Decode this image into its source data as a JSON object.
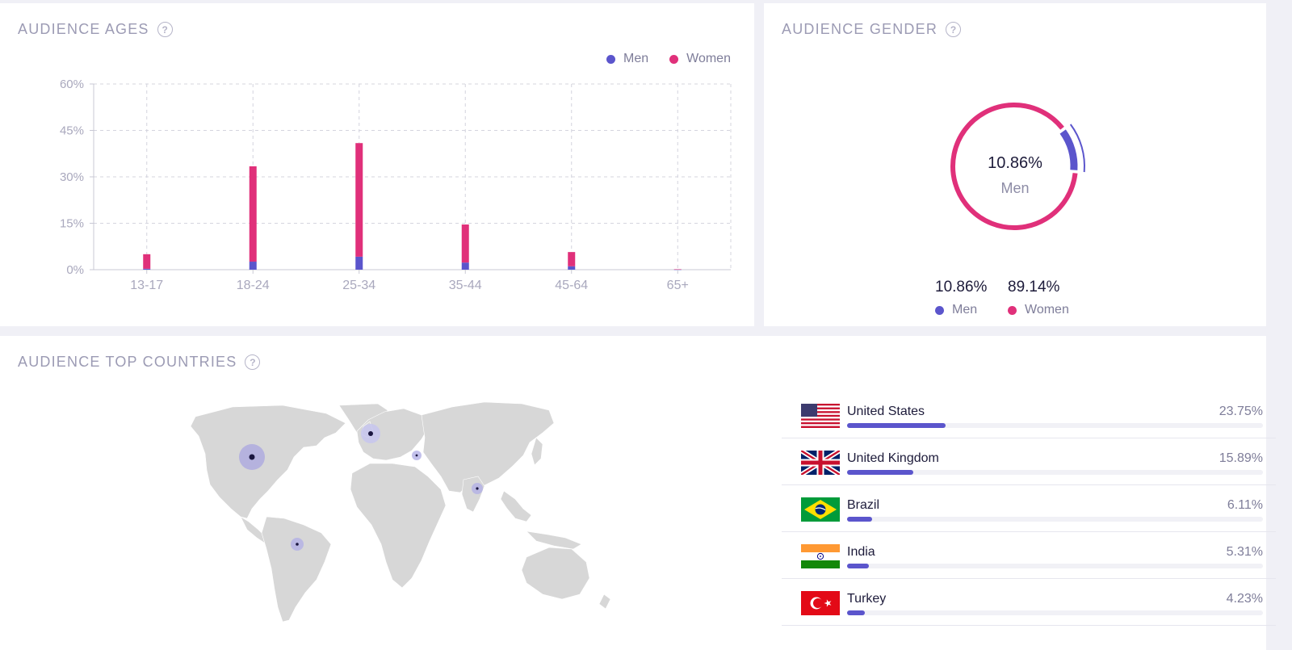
{
  "ages_card": {
    "title": "AUDIENCE AGES",
    "legend": [
      {
        "label": "Men",
        "color": "#5b55cc"
      },
      {
        "label": "Women",
        "color": "#e0307a"
      }
    ]
  },
  "gender_card": {
    "title": "AUDIENCE GENDER",
    "center_value": "10.86%",
    "center_label": "Men",
    "men": {
      "value": "10.86%",
      "label": "Men",
      "color": "#5b55cc"
    },
    "women": {
      "value": "89.14%",
      "label": "Women",
      "color": "#e0307a"
    }
  },
  "countries_card": {
    "title": "AUDIENCE TOP COUNTRIES",
    "countries": [
      {
        "name": "United States",
        "pct": "23.75%",
        "share": 23.75
      },
      {
        "name": "United Kingdom",
        "pct": "15.89%",
        "share": 15.89
      },
      {
        "name": "Brazil",
        "pct": "6.11%",
        "share": 6.11
      },
      {
        "name": "India",
        "pct": "5.31%",
        "share": 5.31
      },
      {
        "name": "Turkey",
        "pct": "4.23%",
        "share": 4.23
      }
    ]
  },
  "chart_data": [
    {
      "type": "bar",
      "stacked": true,
      "categories": [
        "13-17",
        "18-24",
        "25-34",
        "35-44",
        "45-64",
        "65+"
      ],
      "series": [
        {
          "name": "Men",
          "color": "#5b55cc",
          "values": [
            0.3,
            2.6,
            4.2,
            2.3,
            1.1,
            0.05
          ]
        },
        {
          "name": "Women",
          "color": "#e0307a",
          "values": [
            4.7,
            30.8,
            36.7,
            12.3,
            4.6,
            0.1
          ]
        }
      ],
      "y_ticks": [
        "0%",
        "15%",
        "30%",
        "45%",
        "60%"
      ],
      "ylim": [
        0,
        60
      ],
      "grid": true
    },
    {
      "type": "pie",
      "donut": true,
      "slices": [
        {
          "label": "Men",
          "value": 10.86,
          "color": "#5b55cc"
        },
        {
          "label": "Women",
          "value": 89.14,
          "color": "#e0307a"
        }
      ]
    }
  ]
}
